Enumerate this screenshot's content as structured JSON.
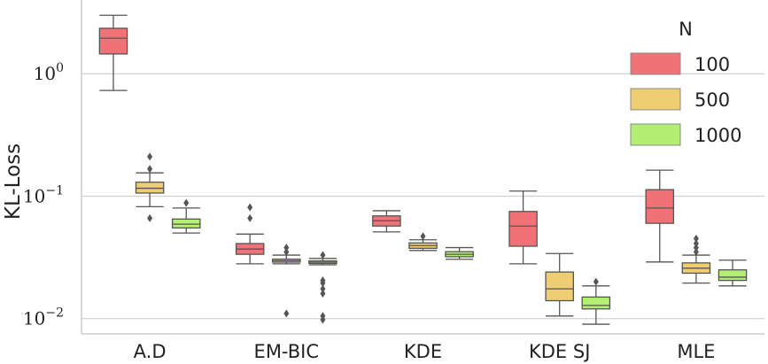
{
  "chart_data": {
    "type": "boxplot",
    "title": "",
    "xlabel": "",
    "ylabel": "KL-Loss",
    "yscale": "log",
    "ylim": [
      0.0075,
      4.0
    ],
    "yticks": [
      {
        "value": 1,
        "base": "10",
        "exp": "0"
      },
      {
        "value": 0.1,
        "base": "10",
        "exp": "−1"
      },
      {
        "value": 0.01,
        "base": "10",
        "exp": "−2"
      }
    ],
    "grid": true,
    "legend": {
      "title": "N",
      "position": "top-right"
    },
    "categories": [
      "A.D",
      "EM-BIC",
      "KDE",
      "KDE SJ",
      "MLE"
    ],
    "series": [
      {
        "name": "100",
        "color": "#F07276",
        "boxes": [
          {
            "whislo": 0.73,
            "q1": 1.45,
            "med": 1.95,
            "q3": 2.35,
            "whishi": 3.0,
            "fliers": []
          },
          {
            "whislo": 0.028,
            "q1": 0.0335,
            "med": 0.037,
            "q3": 0.041,
            "whishi": 0.049,
            "fliers": [
              0.066,
              0.081
            ]
          },
          {
            "whislo": 0.051,
            "q1": 0.057,
            "med": 0.063,
            "q3": 0.069,
            "whishi": 0.076,
            "fliers": []
          },
          {
            "whislo": 0.028,
            "q1": 0.039,
            "med": 0.057,
            "q3": 0.075,
            "whishi": 0.11,
            "fliers": []
          },
          {
            "whislo": 0.029,
            "q1": 0.06,
            "med": 0.08,
            "q3": 0.113,
            "whishi": 0.163,
            "fliers": []
          }
        ]
      },
      {
        "name": "500",
        "color": "#EFCD73",
        "boxes": [
          {
            "whislo": 0.082,
            "q1": 0.106,
            "med": 0.116,
            "q3": 0.13,
            "whishi": 0.155,
            "fliers": [
              0.066,
              0.167,
              0.21
            ]
          },
          {
            "whislo": 0.028,
            "q1": 0.0289,
            "med": 0.0297,
            "q3": 0.0306,
            "whishi": 0.033,
            "fliers": [
              0.011,
              0.035,
              0.038
            ]
          },
          {
            "whislo": 0.036,
            "q1": 0.0375,
            "med": 0.0395,
            "q3": 0.0415,
            "whishi": 0.044,
            "fliers": [
              0.047
            ]
          },
          {
            "whislo": 0.0105,
            "q1": 0.014,
            "med": 0.0175,
            "q3": 0.024,
            "whishi": 0.034,
            "fliers": []
          },
          {
            "whislo": 0.0195,
            "q1": 0.0235,
            "med": 0.0258,
            "q3": 0.0285,
            "whishi": 0.033,
            "fliers": [
              0.035,
              0.038,
              0.041,
              0.045
            ]
          }
        ]
      },
      {
        "name": "1000",
        "color": "#B3EF71",
        "boxes": [
          {
            "whislo": 0.05,
            "q1": 0.055,
            "med": 0.059,
            "q3": 0.065,
            "whishi": 0.08,
            "fliers": [
              0.088
            ]
          },
          {
            "whislo": 0.0275,
            "q1": 0.0282,
            "med": 0.0289,
            "q3": 0.0296,
            "whishi": 0.031,
            "fliers": [
              0.0098,
              0.0105,
              0.016,
              0.0175,
              0.0195,
              0.0205,
              0.033
            ]
          },
          {
            "whislo": 0.0305,
            "q1": 0.032,
            "med": 0.0335,
            "q3": 0.0352,
            "whishi": 0.038,
            "fliers": []
          },
          {
            "whislo": 0.009,
            "q1": 0.012,
            "med": 0.0128,
            "q3": 0.015,
            "whishi": 0.0185,
            "fliers": [
              0.02
            ]
          },
          {
            "whislo": 0.0185,
            "q1": 0.0205,
            "med": 0.0218,
            "q3": 0.025,
            "whishi": 0.03,
            "fliers": []
          }
        ]
      }
    ]
  }
}
